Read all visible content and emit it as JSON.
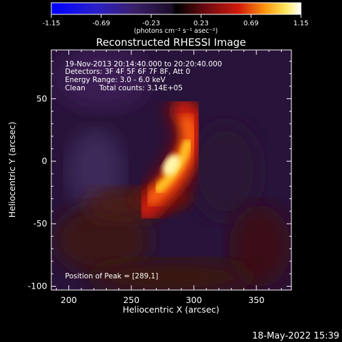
{
  "chart_data": {
    "type": "heatmap",
    "title": "Reconstructed RHESSI Image",
    "xlabel": "Heliocentric X (arcsec)",
    "ylabel": "Heliocentric Y (arcsec)",
    "xlim": [
      186,
      378
    ],
    "ylim": [
      -103,
      89
    ],
    "xticks": [
      200,
      250,
      300,
      350
    ],
    "yticks": [
      -100,
      -50,
      0,
      50
    ],
    "colorbar": {
      "colormap": "hot",
      "range": [
        -1.15,
        1.15
      ],
      "tick_labels": [
        "-1.15",
        "-0.69",
        "-0.23",
        "0.23",
        "0.69",
        "1.15"
      ],
      "tick_values": [
        -1.15,
        -0.69,
        -0.23,
        0.23,
        0.69,
        1.15
      ],
      "label": "(photons cm⁻² s⁻¹ asec⁻²)"
    },
    "source": {
      "peak_x": 289,
      "peak_y": 1,
      "peak_value": 1.15,
      "shape": "crescent arc from about (268,-30) to (298,25)"
    },
    "annotations": {
      "time_range": "19-Nov-2013 20:14:40.000 to 20:20:40.000",
      "detectors": "Detectors: 3F 4F 5F 6F 7F 8F, Att 0",
      "energy_range": "Energy Range: 3.0 - 6.0 keV",
      "method": "Clean",
      "total_counts": "Total counts: 3.14E+05",
      "peak_position": "Position of Peak = [289,1]"
    }
  },
  "footer_timestamp": "18-May-2022 15:39"
}
